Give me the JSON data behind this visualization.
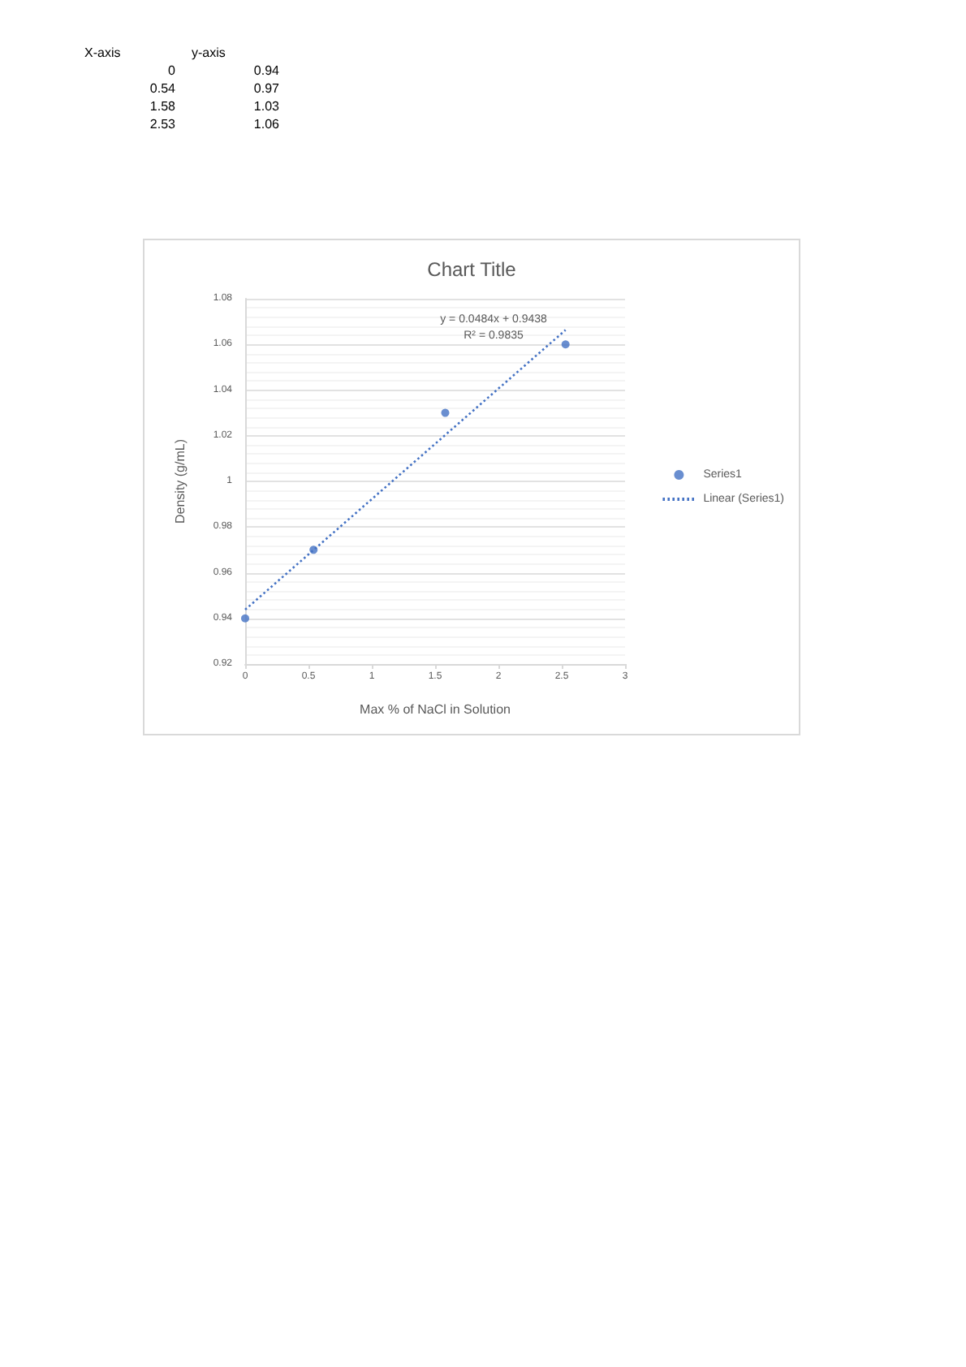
{
  "chart_data": [
    {
      "type": "other",
      "annotations": [
        "X-axis",
        "y-axis",
        "0",
        "0.94",
        "0.54",
        "0.97",
        "1.58",
        "1.03",
        "2.53",
        "1.06"
      ]
    },
    {
      "type": "scatter",
      "title": "Chart Title",
      "xlabel": "Max % of NaCl in Solution",
      "ylabel": "Density (g/mL)",
      "annotations": [
        "y = 0.0484x + 0.9438",
        "R² = 0.9835"
      ],
      "x": [
        0,
        0.54,
        1.58,
        2.53
      ],
      "series": [
        {
          "name": "Series1",
          "color": "#4472c4",
          "values": [
            0.94,
            0.97,
            1.03,
            1.06
          ],
          "marker": "circle"
        },
        {
          "name": "Linear (Series1)",
          "type": "line",
          "color": "#4472c4",
          "x": [
            0,
            2.53
          ],
          "values": [
            0.9438,
            1.0663
          ],
          "line_style": "dotted",
          "marker": "none"
        }
      ],
      "xlim": [
        0,
        3
      ],
      "xticks": [
        0,
        0.5,
        1,
        1.5,
        2,
        2.5,
        3
      ],
      "ylim": [
        0.92,
        1.08
      ],
      "yticks": [
        0.92,
        {
          "value": 0.924,
          "label": null
        },
        {
          "value": 0.928,
          "label": null
        },
        {
          "value": 0.932,
          "label": null
        },
        {
          "value": 0.936,
          "label": null
        },
        0.94,
        {
          "value": 0.944,
          "label": null
        },
        {
          "value": 0.948,
          "label": null
        },
        {
          "value": 0.952,
          "label": null
        },
        {
          "value": 0.956,
          "label": null
        },
        0.96,
        {
          "value": 0.964,
          "label": null
        },
        {
          "value": 0.968,
          "label": null
        },
        {
          "value": 0.972,
          "label": null
        },
        {
          "value": 0.976,
          "label": null
        },
        0.98,
        {
          "value": 0.984,
          "label": null
        },
        {
          "value": 0.988,
          "label": null
        },
        {
          "value": 0.992,
          "label": null
        },
        {
          "value": 0.996,
          "label": null
        },
        1,
        {
          "value": 1.004,
          "label": null
        },
        {
          "value": 1.008,
          "label": null
        },
        {
          "value": 1.012,
          "label": null
        },
        {
          "value": 1.016,
          "label": null
        },
        1.02,
        {
          "value": 1.024,
          "label": null
        },
        {
          "value": 1.028,
          "label": null
        },
        {
          "value": 1.032,
          "label": null
        },
        {
          "value": 1.036,
          "label": null
        },
        1.04,
        {
          "value": 1.044,
          "label": null
        },
        {
          "value": 1.048,
          "label": null
        },
        {
          "value": 1.052,
          "label": null
        },
        {
          "value": 1.056,
          "label": null
        },
        1.06,
        {
          "value": 1.064,
          "label": null
        },
        {
          "value": 1.068,
          "label": null
        },
        {
          "value": 1.072,
          "label": null
        },
        {
          "value": 1.076,
          "label": null
        },
        1.08
      ],
      "grid": "y",
      "legend": "right"
    }
  ]
}
